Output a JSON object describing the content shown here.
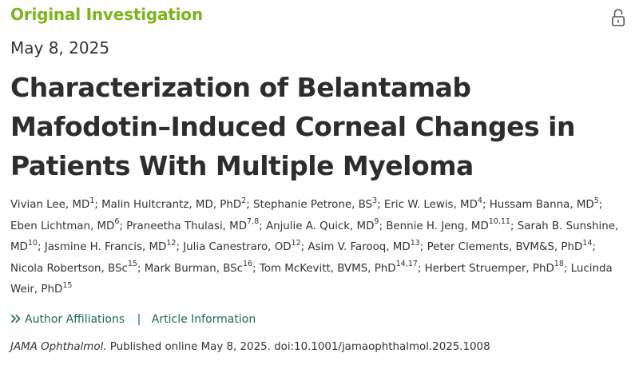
{
  "header": {
    "section_label": "Original Investigation",
    "lock_icon": "open-lock-icon",
    "date": "May 8, 2025"
  },
  "article": {
    "title": "Characterization of Belantamab Mafodotin–Induced Corneal Changes in Patients With Multiple Myeloma"
  },
  "authors": [
    {
      "name": "Vivian Lee, MD",
      "sup": "1",
      "after": "; "
    },
    {
      "name": "Malin Hultcrantz, MD, PhD",
      "sup": "2",
      "after": "; "
    },
    {
      "name": "Stephanie Petrone, BS",
      "sup": "3",
      "after": "; "
    },
    {
      "name": "Eric W. Lewis, MD",
      "sup": "4",
      "after": "; "
    },
    {
      "name": "Hussam Banna, MD",
      "sup": "5",
      "after": "; "
    },
    {
      "name": "Eben Lichtman, MD",
      "sup": "6",
      "after": "; "
    },
    {
      "name": "Praneetha Thulasi, MD",
      "sup": "7,8",
      "after": "; "
    },
    {
      "name": "Anjulie A. Quick, MD",
      "sup": "9",
      "after": "; "
    },
    {
      "name": "Bennie H. Jeng, MD",
      "sup": "10,11",
      "after": "; "
    },
    {
      "name": "Sarah B. Sunshine, MD",
      "sup": "10",
      "after": "; "
    },
    {
      "name": "Jasmine H. Francis, MD",
      "sup": "12",
      "after": "; "
    },
    {
      "name": "Julia Canestraro, OD",
      "sup": "12",
      "after": "; "
    },
    {
      "name": "Asim V. Farooq, MD",
      "sup": "13",
      "after": "; "
    },
    {
      "name": "Peter Clements, BVM&S, PhD",
      "sup": "14",
      "after": "; "
    },
    {
      "name": "Nicola Robertson, BSc",
      "sup": "15",
      "after": "; "
    },
    {
      "name": "Mark Burman, BSc",
      "sup": "16",
      "after": "; "
    },
    {
      "name": "Tom McKevitt, BVMS, PhD",
      "sup": "14,17",
      "after": "; "
    },
    {
      "name": "Herbert Struemper, PhD",
      "sup": "18",
      "after": "; "
    },
    {
      "name": "Lucinda Weir, PhD",
      "sup": "15",
      "after": ""
    }
  ],
  "links": {
    "author_affiliations": "Author Affiliations",
    "separator": "|",
    "article_information": "Article Information"
  },
  "citation": {
    "journal": "JAMA Ophthalmol.",
    "text": " Published online May 8, 2025. doi:10.1001/jamaophthalmol.2025.1008"
  },
  "colors": {
    "section_label": "#7cb41b",
    "link": "#1a6b52",
    "title": "#2d2d2d",
    "body_text": "#333333"
  }
}
